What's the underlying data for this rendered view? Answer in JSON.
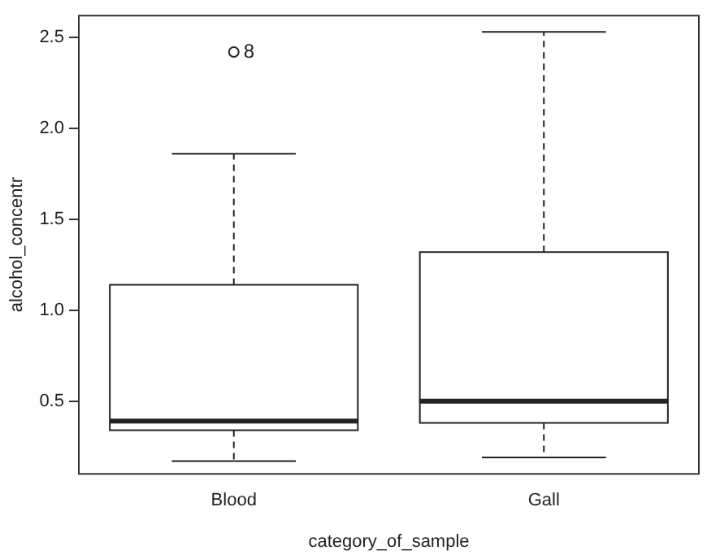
{
  "chart_data": {
    "type": "box",
    "xlabel": "category_of_sample",
    "ylabel": "alcohol_concentr",
    "categories": [
      "Blood",
      "Gall"
    ],
    "boxes": [
      {
        "low": 0.17,
        "q1": 0.34,
        "median": 0.39,
        "q3": 1.14,
        "high": 1.86,
        "outliers": [
          2.42
        ]
      },
      {
        "low": 0.19,
        "q1": 0.38,
        "median": 0.5,
        "q3": 1.32,
        "high": 2.53
      }
    ],
    "ylim": [
      0.1,
      2.62
    ],
    "yticks": [
      0.5,
      {
        "value": 1,
        "label": "1.0"
      },
      1.5,
      {
        "value": 2,
        "label": "2.0"
      },
      2.5
    ],
    "annotations": [
      "8"
    ],
    "grid": false,
    "legend": false
  }
}
